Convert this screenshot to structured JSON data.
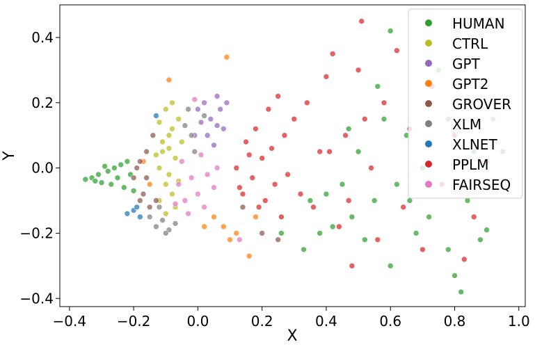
{
  "chart_data": {
    "type": "scatter",
    "title": "",
    "xlabel": "X",
    "ylabel": "Y",
    "xlim": [
      -0.43,
      1.02
    ],
    "ylim": [
      -0.425,
      0.5
    ],
    "xticks": [
      -0.4,
      -0.2,
      0.0,
      0.2,
      0.4,
      0.6,
      0.8,
      1.0
    ],
    "xtick_labels": [
      "−0.4",
      "−0.2",
      "0.0",
      "0.2",
      "0.4",
      "0.6",
      "0.8",
      "1.0"
    ],
    "yticks": [
      -0.4,
      -0.2,
      0.0,
      0.2,
      0.4
    ],
    "ytick_labels": [
      "−0.4",
      "−0.2",
      "0.0",
      "0.2",
      "0.4"
    ],
    "grid": false,
    "legend_position": "top-right",
    "series": [
      {
        "name": "HUMAN",
        "color": "#2ca02c",
        "points": [
          [
            -0.35,
            -0.035
          ],
          [
            -0.33,
            -0.03
          ],
          [
            -0.31,
            -0.02
          ],
          [
            -0.3,
            -0.045
          ],
          [
            -0.28,
            -0.01
          ],
          [
            -0.27,
            -0.05
          ],
          [
            -0.26,
            0.0
          ],
          [
            -0.25,
            -0.03
          ],
          [
            -0.24,
            0.01
          ],
          [
            -0.23,
            -0.06
          ],
          [
            -0.22,
            0.02
          ],
          [
            -0.21,
            -0.02
          ],
          [
            -0.2,
            -0.07
          ],
          [
            -0.29,
            0.005
          ],
          [
            -0.32,
            -0.04
          ],
          [
            0.35,
            -0.1
          ],
          [
            0.38,
            -0.2
          ],
          [
            0.42,
            -0.18
          ],
          [
            0.45,
            -0.05
          ],
          [
            0.48,
            -0.15
          ],
          [
            0.5,
            0.05
          ],
          [
            0.52,
            -0.22
          ],
          [
            0.55,
            -0.1
          ],
          [
            0.58,
            0.15
          ],
          [
            0.6,
            -0.3
          ],
          [
            0.6,
            0.42
          ],
          [
            0.62,
            -0.05
          ],
          [
            0.65,
            0.1
          ],
          [
            0.68,
            -0.2
          ],
          [
            0.7,
            0.0
          ],
          [
            0.72,
            -0.15
          ],
          [
            0.75,
            0.3
          ],
          [
            0.78,
            -0.25
          ],
          [
            0.8,
            -0.33
          ],
          [
            0.82,
            -0.38
          ],
          [
            0.84,
            -0.1
          ],
          [
            0.86,
            0.05
          ],
          [
            0.88,
            -0.22
          ],
          [
            0.9,
            -0.19
          ],
          [
            0.92,
            0.15
          ],
          [
            0.95,
            0.05
          ],
          [
            0.85,
            0.2
          ],
          [
            0.78,
            0.15
          ],
          [
            0.66,
            -0.1
          ],
          [
            0.56,
            0.25
          ],
          [
            0.47,
            0.12
          ],
          [
            0.4,
            -0.08
          ],
          [
            0.33,
            -0.25
          ],
          [
            0.26,
            -0.2
          ]
        ]
      },
      {
        "name": "CTRL",
        "color": "#bcbd22",
        "points": [
          [
            -0.12,
            0.0
          ],
          [
            -0.11,
            0.05
          ],
          [
            -0.1,
            -0.05
          ],
          [
            -0.09,
            0.1
          ],
          [
            -0.08,
            -0.08
          ],
          [
            -0.07,
            0.03
          ],
          [
            -0.06,
            0.15
          ],
          [
            -0.12,
            -0.1
          ],
          [
            -0.1,
            0.18
          ],
          [
            -0.08,
            0.12
          ],
          [
            -0.07,
            -0.12
          ],
          [
            -0.11,
            0.08
          ],
          [
            -0.09,
            -0.02
          ],
          [
            -0.13,
            0.04
          ],
          [
            -0.06,
            -0.04
          ],
          [
            -0.05,
            0.08
          ],
          [
            -0.12,
            0.14
          ],
          [
            -0.1,
            -0.14
          ],
          [
            -0.08,
            0.2
          ],
          [
            -0.09,
            0.06
          ]
        ]
      },
      {
        "name": "GPT",
        "color": "#9467bd",
        "points": [
          [
            0.0,
            0.18
          ],
          [
            0.02,
            0.2
          ],
          [
            0.04,
            0.15
          ],
          [
            0.06,
            0.22
          ],
          [
            0.08,
            0.12
          ],
          [
            -0.01,
            0.1
          ],
          [
            0.03,
            0.1
          ],
          [
            0.07,
            0.18
          ],
          [
            0.05,
            0.07
          ],
          [
            0.01,
            0.14
          ],
          [
            0.09,
            0.2
          ],
          [
            0.06,
            0.13
          ]
        ]
      },
      {
        "name": "GPT2",
        "color": "#ff7f0e",
        "points": [
          [
            -0.17,
            0.02
          ],
          [
            -0.15,
            -0.05
          ],
          [
            0.02,
            -0.18
          ],
          [
            0.05,
            -0.15
          ],
          [
            0.1,
            -0.22
          ],
          [
            0.12,
            -0.2
          ],
          [
            0.16,
            -0.27
          ],
          [
            0.18,
            -0.15
          ],
          [
            0.09,
            0.34
          ],
          [
            -0.09,
            0.27
          ],
          [
            0.08,
            -0.18
          ]
        ]
      },
      {
        "name": "GROVER",
        "color": "#8c564b",
        "points": [
          [
            -0.2,
            -0.03
          ],
          [
            -0.18,
            0.02
          ],
          [
            -0.17,
            -0.08
          ],
          [
            -0.16,
            0.05
          ],
          [
            -0.15,
            -0.12
          ],
          [
            -0.19,
            0.0
          ],
          [
            -0.14,
            0.1
          ],
          [
            -0.18,
            -0.1
          ],
          [
            -0.16,
            -0.03
          ],
          [
            -0.13,
            -0.1
          ],
          [
            0.2,
            -0.2
          ],
          [
            0.25,
            -0.22
          ],
          [
            0.14,
            -0.12
          ]
        ]
      },
      {
        "name": "XLM",
        "color": "#7f7f7f",
        "points": [
          [
            -0.15,
            -0.15
          ],
          [
            -0.13,
            -0.18
          ],
          [
            -0.11,
            -0.16
          ],
          [
            -0.09,
            -0.19
          ],
          [
            -0.12,
            -0.12
          ],
          [
            -0.02,
            0.1
          ],
          [
            -0.03,
            0.18
          ],
          [
            -0.01,
            0.05
          ],
          [
            -0.04,
            0.13
          ],
          [
            0.02,
            0.16
          ],
          [
            -0.07,
            -0.17
          ],
          [
            -0.1,
            -0.2
          ]
        ]
      },
      {
        "name": "XLNET",
        "color": "#1f77b4",
        "points": [
          [
            -0.22,
            -0.14
          ],
          [
            -0.2,
            -0.13
          ],
          [
            -0.18,
            -0.15
          ],
          [
            -0.19,
            -0.12
          ],
          [
            -0.13,
            0.16
          ]
        ]
      },
      {
        "name": "PPLM",
        "color": "#d62728",
        "points": [
          [
            0.12,
            0.0
          ],
          [
            0.14,
            -0.08
          ],
          [
            0.15,
            0.08
          ],
          [
            0.17,
            -0.03
          ],
          [
            0.18,
            0.12
          ],
          [
            0.2,
            0.03
          ],
          [
            0.21,
            -0.1
          ],
          [
            0.22,
            0.18
          ],
          [
            0.23,
            0.06
          ],
          [
            0.24,
            -0.05
          ],
          [
            0.25,
            0.22
          ],
          [
            0.26,
            -0.15
          ],
          [
            0.27,
            0.1
          ],
          [
            0.28,
            -0.02
          ],
          [
            0.3,
            0.15
          ],
          [
            0.32,
            -0.08
          ],
          [
            0.34,
            0.2
          ],
          [
            0.36,
            -0.12
          ],
          [
            0.38,
            0.05
          ],
          [
            0.4,
            0.28
          ],
          [
            0.42,
            0.35
          ],
          [
            0.44,
            -0.18
          ],
          [
            0.46,
            0.1
          ],
          [
            0.48,
            -0.3
          ],
          [
            0.5,
            0.3
          ],
          [
            0.51,
            0.45
          ],
          [
            0.54,
            0.0
          ],
          [
            0.56,
            -0.22
          ],
          [
            0.58,
            0.2
          ],
          [
            0.62,
            0.36
          ],
          [
            0.64,
            -0.12
          ],
          [
            0.66,
            0.12
          ],
          [
            0.7,
            -0.25
          ],
          [
            0.73,
            0.25
          ],
          [
            0.76,
            -0.05
          ],
          [
            0.8,
            0.1
          ],
          [
            0.83,
            -0.28
          ],
          [
            0.86,
            -0.15
          ],
          [
            0.9,
            0.02
          ],
          [
            0.52,
            0.15
          ],
          [
            0.47,
            -0.1
          ],
          [
            0.41,
            0.05
          ],
          [
            0.13,
            -0.06
          ],
          [
            0.19,
            -0.12
          ],
          [
            0.16,
            0.04
          ]
        ]
      },
      {
        "name": "FAIRSEQ",
        "color": "#e377c2",
        "points": [
          [
            -0.06,
            -0.05
          ],
          [
            -0.04,
            -0.1
          ],
          [
            -0.02,
            -0.03
          ],
          [
            0.0,
            -0.08
          ],
          [
            0.02,
            -0.12
          ],
          [
            -0.05,
            0.02
          ],
          [
            0.03,
            -0.02
          ],
          [
            0.01,
            0.04
          ],
          [
            -0.03,
            -0.14
          ],
          [
            0.05,
            -0.06
          ],
          [
            -0.07,
            -0.11
          ],
          [
            0.06,
            0.0
          ],
          [
            -0.01,
            0.21
          ],
          [
            0.13,
            -0.22
          ]
        ]
      }
    ]
  }
}
